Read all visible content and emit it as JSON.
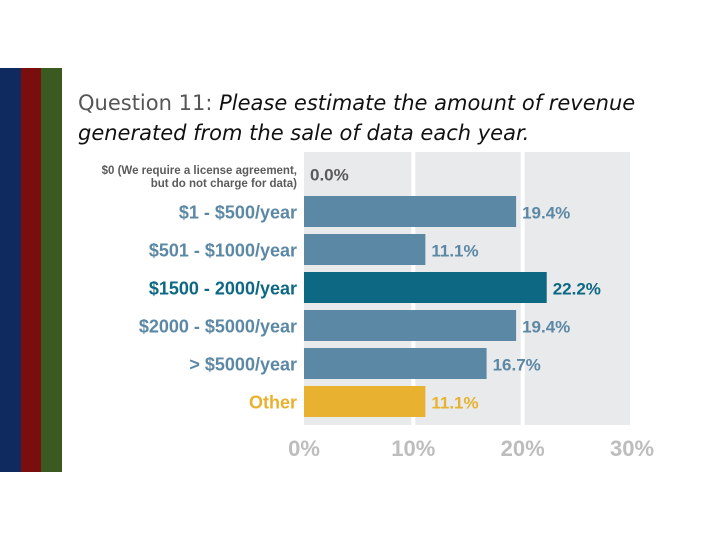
{
  "slide": {
    "question_label": "Question 11:",
    "question_text": "Please estimate the amount of revenue generated from the sale of data each year.",
    "stripe_colors": [
      "#0e2a5e",
      "#7a0d0d",
      "#3a5a22"
    ]
  },
  "chart_data": {
    "type": "bar",
    "orientation": "horizontal",
    "title": "Question 11: Please estimate the amount of revenue generated from the sale of data each year.",
    "categories": [
      "$0 (We require a license agreement, but do not charge for data)",
      "$1 - $500/year",
      "$501 - $1000/year",
      "$1500 - 2000/year",
      "$2000 - $5000/year",
      "> $5000/year",
      "Other"
    ],
    "category_lines": [
      [
        "$0 (We require a license agreement,",
        "but do not charge for data)"
      ],
      [
        "$1 - $500/year"
      ],
      [
        "$501 - $1000/year"
      ],
      [
        "$1500 - 2000/year"
      ],
      [
        "$2000 - $5000/year"
      ],
      [
        "> $5000/year"
      ],
      [
        "Other"
      ]
    ],
    "values": [
      0.0,
      19.4,
      11.1,
      22.2,
      19.4,
      16.7,
      11.1
    ],
    "value_labels": [
      "0.0%",
      "19.4%",
      "11.1%",
      "22.2%",
      "19.4%",
      "16.7%",
      "11.1%"
    ],
    "bar_colors": [
      "#5b88a5",
      "#5b88a5",
      "#5b88a5",
      "#0d6884",
      "#5b88a5",
      "#5b88a5",
      "#e8b230"
    ],
    "label_colors": [
      "#5b5b5b",
      "#5b88a5",
      "#5b88a5",
      "#0d6884",
      "#5b88a5",
      "#5b88a5",
      "#e8b230"
    ],
    "xlim": [
      0,
      30
    ],
    "xticks": [
      0,
      10,
      20,
      30
    ],
    "xtick_labels": [
      "0%",
      "10%",
      "20%",
      "30%"
    ],
    "xlabel": "",
    "ylabel": "",
    "grid": true
  }
}
